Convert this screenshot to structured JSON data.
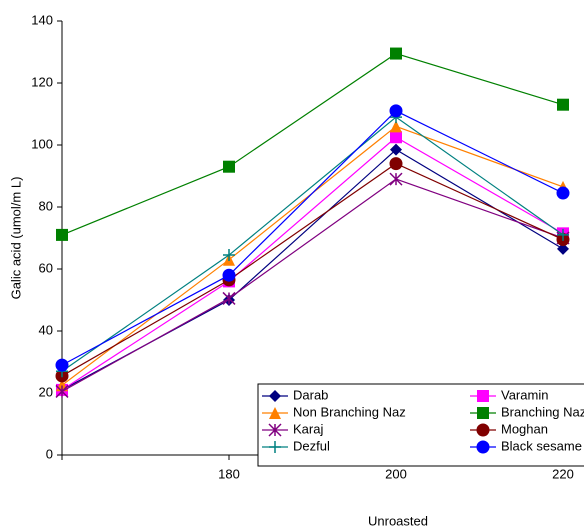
{
  "chart_data": {
    "type": "line",
    "x_label": "Unroasted",
    "y_label": "Galic acid (umol/m L)",
    "categories": [
      null,
      "180",
      "200",
      "220"
    ],
    "ylim": [
      0,
      140
    ],
    "yticks": [
      0,
      20,
      40,
      60,
      80,
      100,
      120,
      140
    ],
    "series": [
      {
        "name": "Darab",
        "color": "#000080",
        "marker": "diamond",
        "values": [
          21,
          50,
          98.5,
          66.5
        ]
      },
      {
        "name": "Varamin",
        "color": "#ff00ff",
        "marker": "square",
        "values": [
          21,
          56,
          102.5,
          71.5
        ]
      },
      {
        "name": "Non Branching Naz",
        "color": "#ff8000",
        "marker": "triangle",
        "values": [
          22.5,
          63,
          106,
          86.5
        ]
      },
      {
        "name": "Branching Naz",
        "color": "#008000",
        "marker": "square",
        "values": [
          71,
          93,
          129.5,
          113
        ]
      },
      {
        "name": "Karaj",
        "color": "#800080",
        "marker": "star",
        "values": [
          20.5,
          50.5,
          89,
          70
        ]
      },
      {
        "name": "Moghan",
        "color": "#800000",
        "marker": "circle",
        "values": [
          25.5,
          56.5,
          94,
          69.5
        ]
      },
      {
        "name": "Dezful",
        "color": "#008080",
        "marker": "plus",
        "values": [
          27,
          64.5,
          109,
          71
        ]
      },
      {
        "name": "Black sesame",
        "color": "#0000ff",
        "marker": "circle",
        "values": [
          29,
          58,
          111,
          84.5
        ]
      }
    ]
  }
}
